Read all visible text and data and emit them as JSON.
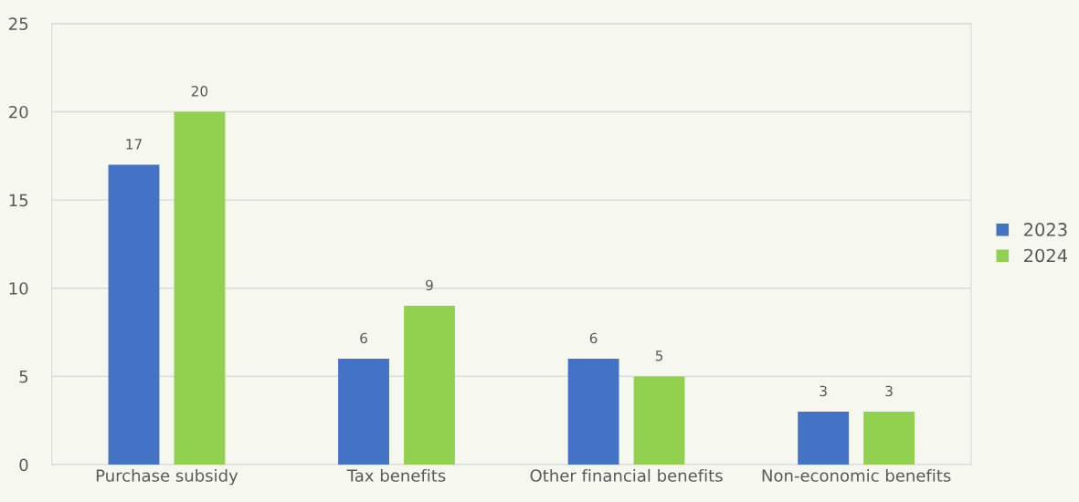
{
  "chart_data": {
    "type": "bar",
    "categories": [
      "Purchase subsidy",
      "Tax benefits",
      "Other financial benefits",
      "Non-economic benefits"
    ],
    "series": [
      {
        "name": "2023",
        "color": "#4472c4",
        "values": [
          17,
          6,
          6,
          3
        ]
      },
      {
        "name": "2024",
        "color": "#92d050",
        "values": [
          20,
          9,
          5,
          3
        ]
      }
    ],
    "ylim": [
      0,
      25
    ],
    "yticks": [
      0,
      5,
      10,
      15,
      20,
      25
    ],
    "grid": "y",
    "legend": "right",
    "data_labels": true
  }
}
